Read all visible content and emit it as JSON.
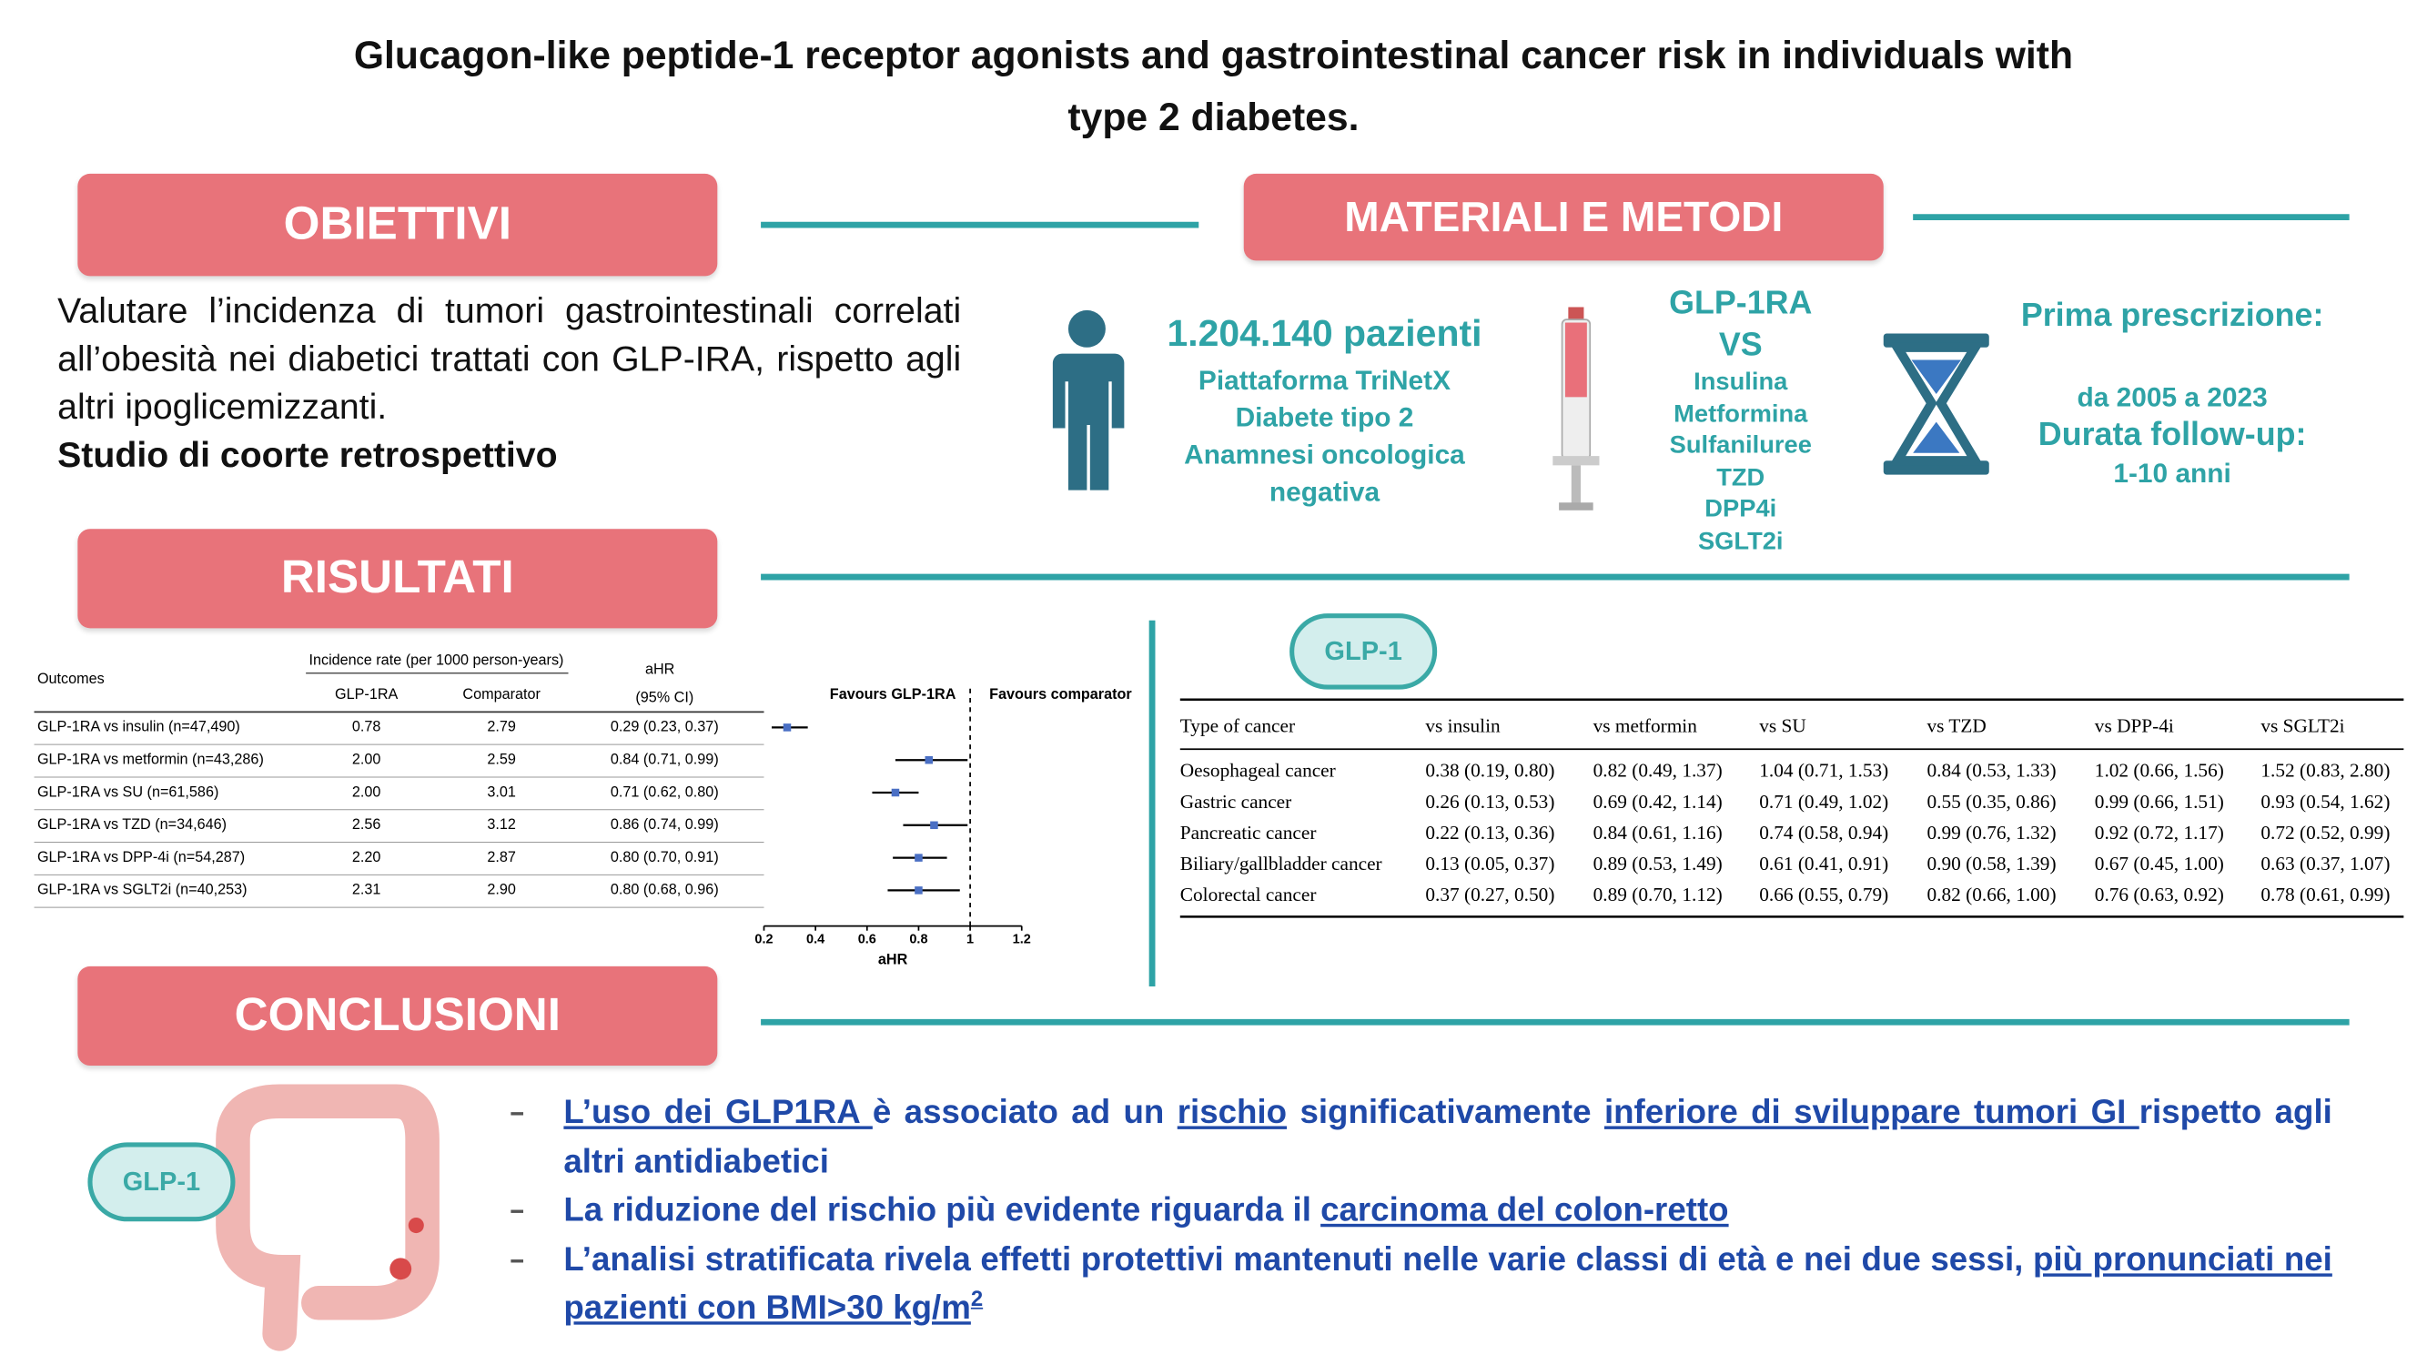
{
  "header": {
    "title": [
      "Glucagon-like peptide-1 receptor agonists and gastrointestinal cancer risk in individuals with",
      "type 2 diabetes."
    ]
  },
  "objectives": {
    "heading": "OBIETTIVI",
    "text": "Valutare l’incidenza di tumori gastrointestinali correlati all’obesità nei diabetici trattati con GLP-IRA, rispetto agli altri ipoglicemizzanti.",
    "design": "Studio di coorte retrospettivo"
  },
  "methods": {
    "heading": "MATERIALI E METODI",
    "patients": "1.204.140 pazienti",
    "population": [
      "Piattaforma TriNetX",
      "Diabete tipo 2",
      "Anamnesi oncologica negativa"
    ],
    "drug": "GLP-1RA",
    "vs": "VS",
    "comparators": [
      "Insulina",
      "Metformina",
      "Sulfaniluree",
      "TZD",
      "DPP4i",
      "SGLT2i"
    ],
    "timing": [
      "Prima prescrizione:",
      "da 2005 a 2023",
      "Durata follow-up:",
      "1-10 anni"
    ]
  },
  "results": {
    "heading": "RISULTATI",
    "table": {
      "group_header": "Incidence rate (per 1000 person-years)",
      "headers": [
        "Outcomes",
        "GLP-1RA",
        "Comparator",
        "aHR",
        "(95% CI)"
      ],
      "rows": [
        [
          "GLP-1RA vs insulin (n=47,490)",
          "0.78",
          "2.79"
        ],
        [
          "GLP-1RA vs metformin (n=43,286)",
          "2.00",
          "2.59"
        ],
        [
          "GLP-1RA vs SU (n=61,586)",
          "2.00",
          "3.01"
        ],
        [
          "GLP-1RA vs TZD (n=34,646)",
          "2.56",
          "3.12"
        ],
        [
          "GLP-1RA vs DPP-4i (n=54,287)",
          "2.20",
          "2.87"
        ],
        [
          "GLP-1RA vs SGLT2i (n=40,253)",
          "2.31",
          "2.90"
        ]
      ]
    },
    "forest": {
      "values": [
        0.29,
        0.84,
        0.71,
        0.86,
        0.8,
        0.8
      ],
      "lower": [
        0.23,
        0.71,
        0.62,
        0.74,
        0.7,
        0.68
      ],
      "upper": [
        0.37,
        0.99,
        0.8,
        0.99,
        0.91,
        0.96
      ],
      "value_labels": [
        "0.29 (0.23, 0.37)",
        "0.84 (0.71, 0.99)",
        "0.71 (0.62, 0.80)",
        "0.86 (0.74, 0.99)",
        "0.80 (0.70, 0.91)",
        "0.80 (0.68, 0.96)"
      ],
      "xlim": [
        0.2,
        1.2
      ],
      "xticks": [
        0.2,
        0.4,
        0.6,
        0.8,
        1,
        1.2
      ],
      "reference": 1,
      "xlabel": "aHR",
      "left_label": "Favours GLP-1RA",
      "right_label": "Favours comparator",
      "color": "#4a6fc4"
    },
    "subtype": {
      "badge": "GLP-1",
      "headers": [
        "Type of cancer",
        "vs insulin",
        "vs metformin",
        "vs SU",
        "vs TZD",
        "vs DPP-4i",
        "vs SGLT2i"
      ],
      "rows": [
        [
          "Oesophageal cancer",
          "0.38 (0.19, 0.80)",
          "0.82 (0.49, 1.37)",
          "1.04 (0.71, 1.53)",
          "0.84 (0.53, 1.33)",
          "1.02 (0.66, 1.56)",
          "1.52 (0.83, 2.80)"
        ],
        [
          "Gastric cancer",
          "0.26 (0.13, 0.53)",
          "0.69 (0.42, 1.14)",
          "0.71 (0.49, 1.02)",
          "0.55 (0.35, 0.86)",
          "0.99 (0.66, 1.51)",
          "0.93 (0.54, 1.62)"
        ],
        [
          "Pancreatic cancer",
          "0.22 (0.13, 0.36)",
          "0.84 (0.61, 1.16)",
          "0.74 (0.58, 0.94)",
          "0.99 (0.76, 1.32)",
          "0.92 (0.72, 1.17)",
          "0.72 (0.52, 0.99)"
        ],
        [
          "Biliary/gallbladder cancer",
          "0.13 (0.05, 0.37)",
          "0.89 (0.53, 1.49)",
          "0.61 (0.41, 0.91)",
          "0.90 (0.58, 1.39)",
          "0.67 (0.45, 1.00)",
          "0.63 (0.37, 1.07)"
        ],
        [
          "Colorectal cancer",
          "0.37 (0.27, 0.50)",
          "0.89 (0.70, 1.12)",
          "0.66 (0.55, 0.79)",
          "0.82 (0.66, 1.00)",
          "0.76 (0.63, 0.92)",
          "0.78 (0.61, 0.99)"
        ]
      ]
    }
  },
  "conclusions": {
    "heading": "CONCLUSIONI",
    "badge": "GLP-1",
    "bullets": [
      [
        {
          "text": "L’uso dei GLP1RA ",
          "underline": true
        },
        {
          "text": "è associato ad un "
        },
        {
          "text": "rischio",
          "underline": true
        },
        {
          "text": " significativamente "
        },
        {
          "text": "inferiore di sviluppare tumori GI ",
          "underline": true
        },
        {
          "text": "rispetto agli altri antidiabetici"
        }
      ],
      [
        {
          "text": "La riduzione del rischio più evidente riguarda il "
        },
        {
          "text": "carcinoma del colon-retto",
          "underline": true
        }
      ],
      [
        {
          "text": "L’analisi stratificata rivela effetti protettivi mantenuti nelle varie classi di età e nei due sessi, "
        },
        {
          "text": "più pronunciati nei pazienti con BMI>30 kg/m",
          "underline": true
        },
        {
          "text": "2",
          "underline": true,
          "sup": true
        }
      ]
    ]
  }
}
